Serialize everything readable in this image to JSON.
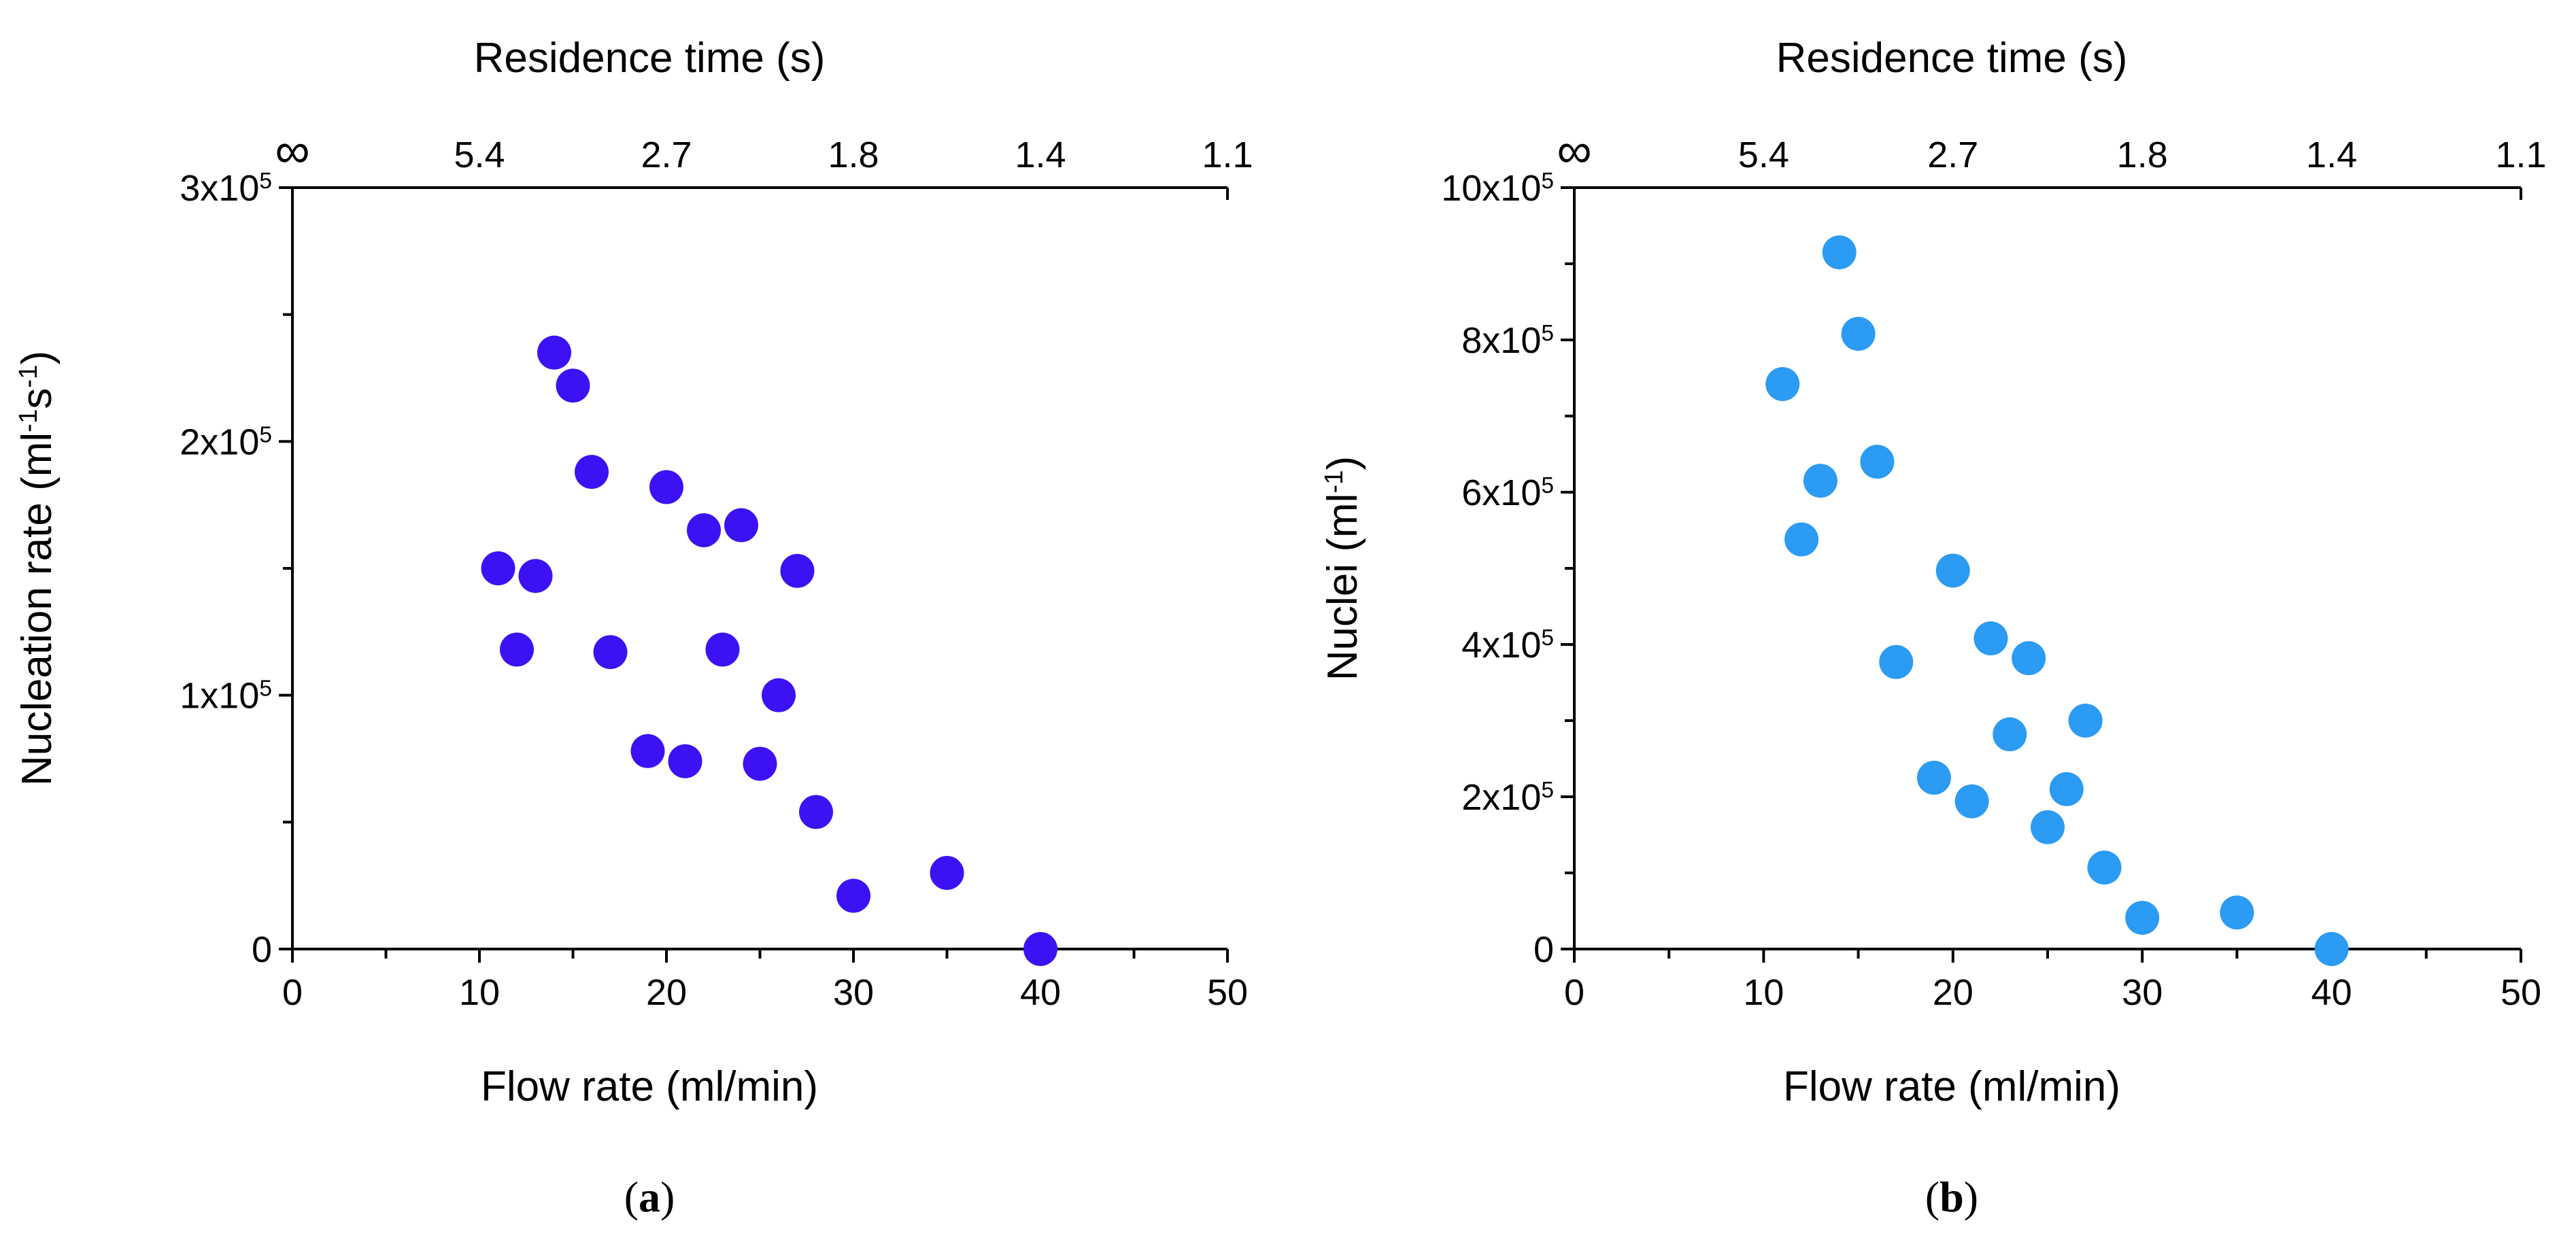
{
  "chart_data": [
    {
      "type": "scatter",
      "panel_label": "a",
      "xlabel": "Flow rate (ml/min)",
      "ylabel_prefix": "Nucleation rate (ml",
      "ylabel_sup1": "-1",
      "ylabel_mid": "s",
      "ylabel_sup2": "-1",
      "ylabel_suffix": ")",
      "secondary_xlabel": "Residence time (s)",
      "xlim": [
        0,
        50
      ],
      "ylim": [
        0,
        300000
      ],
      "x_ticks": [
        "0",
        "10",
        "20",
        "30",
        "40",
        "50"
      ],
      "y_ticks": [
        {
          "value": 0,
          "base": "0",
          "exp": ""
        },
        {
          "value": 100000,
          "base": "1x10",
          "exp": "5"
        },
        {
          "value": 200000,
          "base": "2x10",
          "exp": "5"
        },
        {
          "value": 300000,
          "base": "3x10",
          "exp": "5"
        }
      ],
      "secondary_ticks": [
        {
          "flow": 0,
          "label": "∞"
        },
        {
          "flow": 10,
          "label": "5.4"
        },
        {
          "flow": 20,
          "label": "2.7"
        },
        {
          "flow": 30,
          "label": "1.8"
        },
        {
          "flow": 40,
          "label": "1.4"
        },
        {
          "flow": 50,
          "label": "1.1"
        }
      ],
      "color": "#3c12f5",
      "series": [
        {
          "name": "Nucleation rate",
          "x": [
            11,
            12,
            13,
            14,
            15,
            16,
            17,
            19,
            20,
            21,
            22,
            23,
            24,
            25,
            26,
            27,
            28,
            30,
            35,
            40
          ],
          "y": [
            150000,
            118000,
            147000,
            235000,
            222000,
            188000,
            117000,
            78000,
            182000,
            74000,
            165000,
            118000,
            167000,
            73000,
            100000,
            149000,
            54000,
            21000,
            30000,
            0
          ]
        }
      ]
    },
    {
      "type": "scatter",
      "panel_label": "b",
      "xlabel": "Flow rate (ml/min)",
      "ylabel_prefix": "Nuclei (ml",
      "ylabel_sup1": "-1",
      "ylabel_mid": "",
      "ylabel_sup2": "",
      "ylabel_suffix": ")",
      "secondary_xlabel": "Residence time (s)",
      "xlim": [
        0,
        50
      ],
      "ylim": [
        0,
        1000000
      ],
      "x_ticks": [
        "0",
        "10",
        "20",
        "30",
        "40",
        "50"
      ],
      "y_ticks": [
        {
          "value": 0,
          "base": "0",
          "exp": ""
        },
        {
          "value": 200000,
          "base": "2x10",
          "exp": "5"
        },
        {
          "value": 400000,
          "base": "4x10",
          "exp": "5"
        },
        {
          "value": 600000,
          "base": "6x10",
          "exp": "5"
        },
        {
          "value": 800000,
          "base": "8x10",
          "exp": "5"
        },
        {
          "value": 1000000,
          "base": "10x10",
          "exp": "5"
        }
      ],
      "secondary_ticks": [
        {
          "flow": 0,
          "label": "∞"
        },
        {
          "flow": 10,
          "label": "5.4"
        },
        {
          "flow": 20,
          "label": "2.7"
        },
        {
          "flow": 30,
          "label": "1.8"
        },
        {
          "flow": 40,
          "label": "1.4"
        },
        {
          "flow": 50,
          "label": "1.1"
        }
      ],
      "color": "#2b9bf4",
      "series": [
        {
          "name": "Nuclei",
          "x": [
            11,
            12,
            13,
            14,
            15,
            16,
            17,
            19,
            20,
            21,
            22,
            23,
            24,
            25,
            26,
            27,
            28,
            30,
            35,
            40
          ],
          "y": [
            742000,
            538000,
            615000,
            915000,
            808000,
            640000,
            377000,
            225000,
            497000,
            194000,
            408000,
            282000,
            382000,
            160000,
            210000,
            300000,
            107000,
            41000,
            48000,
            0
          ]
        }
      ]
    }
  ]
}
